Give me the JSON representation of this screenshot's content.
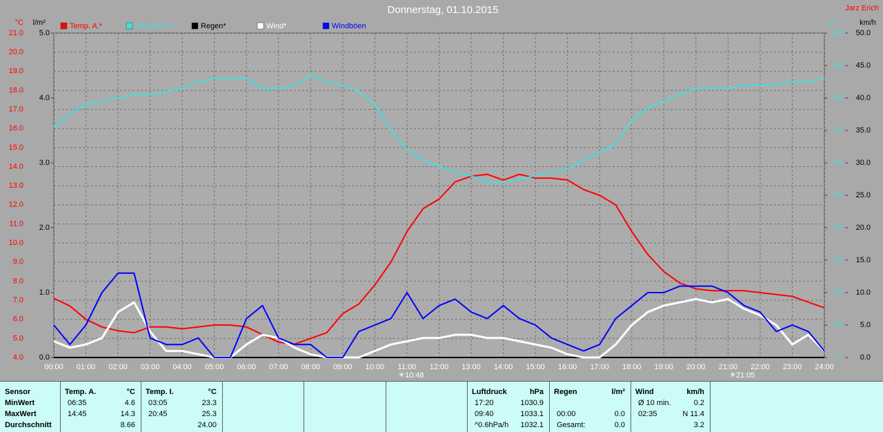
{
  "chart_data": {
    "type": "line",
    "title": "Donnerstag, 01.10.2015",
    "author": "Jarz Erich",
    "y_unit": "°C",
    "y4_unit": "l/m²",
    "y2_unit": "%",
    "y3_unit": "km/h",
    "sun_marks": [
      "10:48",
      "21:05"
    ],
    "xlim": [
      0,
      24
    ],
    "xticks": [
      {
        "value": 0,
        "label": "00:00"
      },
      {
        "value": 1,
        "label": "01:00"
      },
      {
        "value": 2,
        "label": "02:00"
      },
      {
        "value": 3,
        "label": "03:00"
      },
      {
        "value": 4,
        "label": "04:00"
      },
      {
        "value": 5,
        "label": "05:00"
      },
      {
        "value": 6,
        "label": "06:00"
      },
      {
        "value": 7,
        "label": "07:00"
      },
      {
        "value": 8,
        "label": "08:00"
      },
      {
        "value": 9,
        "label": "09:00"
      },
      {
        "value": 10,
        "label": "10:00"
      },
      {
        "value": 11,
        "label": "11:00"
      },
      {
        "value": 12,
        "label": "12:00"
      },
      {
        "value": 13,
        "label": "13:00"
      },
      {
        "value": 14,
        "label": "14:00"
      },
      {
        "value": 15,
        "label": "15:00"
      },
      {
        "value": 16,
        "label": "16:00"
      },
      {
        "value": 17,
        "label": "17:00"
      },
      {
        "value": 18,
        "label": "18:00"
      },
      {
        "value": 19,
        "label": "19:00"
      },
      {
        "value": 20,
        "label": "20:00"
      },
      {
        "value": 21,
        "label": "21:00"
      },
      {
        "value": 22,
        "label": "22:00"
      },
      {
        "value": 23,
        "label": "23:00"
      },
      {
        "value": 24,
        "label": "24:00"
      }
    ],
    "ylim": [
      4,
      21
    ],
    "yticks": [
      {
        "value": 4,
        "label": "4.0"
      },
      {
        "value": 5,
        "label": "5.0"
      },
      {
        "value": 6,
        "label": "6.0"
      },
      {
        "value": 7,
        "label": "7.0"
      },
      {
        "value": 8,
        "label": "8.0"
      },
      {
        "value": 9,
        "label": "9.0"
      },
      {
        "value": 10,
        "label": "10.0"
      },
      {
        "value": 11,
        "label": "11.0"
      },
      {
        "value": 12,
        "label": "12.0"
      },
      {
        "value": 13,
        "label": "13.0"
      },
      {
        "value": 14,
        "label": "14.0"
      },
      {
        "value": 15,
        "label": "15.0"
      },
      {
        "value": 16,
        "label": "16.0"
      },
      {
        "value": 17,
        "label": "17.0"
      },
      {
        "value": 18,
        "label": "18.0"
      },
      {
        "value": 19,
        "label": "19.0"
      },
      {
        "value": 20,
        "label": "20.0"
      },
      {
        "value": 21,
        "label": "21.0"
      }
    ],
    "y4lim": [
      0,
      5
    ],
    "y4ticks": [
      {
        "value": 0,
        "label": "0.0"
      },
      {
        "value": 1,
        "label": "1.0"
      },
      {
        "value": 2,
        "label": "2.0"
      },
      {
        "value": 3,
        "label": "3.0"
      },
      {
        "value": 4,
        "label": "4.0"
      },
      {
        "value": 5,
        "label": "5.0"
      }
    ],
    "y2lim": [
      0,
      100
    ],
    "y2ticks": [
      0,
      10,
      20,
      30,
      40,
      50,
      60,
      70,
      80,
      90,
      100
    ],
    "y3lim": [
      0,
      50
    ],
    "y3ticks": [
      {
        "value": 0,
        "label": "0.0"
      },
      {
        "value": 5,
        "label": "5.0"
      },
      {
        "value": 10,
        "label": "10.0"
      },
      {
        "value": 15,
        "label": "15.0"
      },
      {
        "value": 20,
        "label": "20.0"
      },
      {
        "value": 25,
        "label": "25.0"
      },
      {
        "value": 30,
        "label": "30.0"
      },
      {
        "value": 35,
        "label": "35.0"
      },
      {
        "value": 40,
        "label": "40.0"
      },
      {
        "value": 45,
        "label": "45.0"
      },
      {
        "value": 50,
        "label": "50.0"
      }
    ],
    "grid": true,
    "x": [
      0,
      0.5,
      1,
      1.5,
      2,
      2.5,
      3,
      3.5,
      4,
      4.5,
      5,
      5.5,
      6,
      6.5,
      7,
      7.5,
      8,
      8.5,
      9,
      9.5,
      10,
      10.5,
      11,
      11.5,
      12,
      12.5,
      13,
      13.5,
      14,
      14.5,
      15,
      15.5,
      16,
      16.5,
      17,
      17.5,
      18,
      18.5,
      19,
      19.5,
      20,
      20.5,
      21,
      21.5,
      22,
      22.5,
      23,
      23.5,
      24
    ],
    "series": [
      {
        "name": "Temp. A.*",
        "color": "#ff0000",
        "axis": "y",
        "values": [
          7.1,
          6.7,
          6.0,
          5.6,
          5.4,
          5.3,
          5.6,
          5.6,
          5.5,
          5.6,
          5.7,
          5.7,
          5.6,
          5.2,
          4.8,
          4.7,
          5.0,
          5.3,
          6.3,
          6.8,
          7.8,
          9.0,
          10.6,
          11.8,
          12.3,
          13.2,
          13.5,
          13.6,
          13.3,
          13.6,
          13.4,
          13.4,
          13.3,
          12.8,
          12.5,
          12.0,
          10.6,
          9.4,
          8.5,
          7.9,
          7.6,
          7.5,
          7.5,
          7.5,
          7.4,
          7.3,
          7.2,
          6.9,
          6.6
        ]
      },
      {
        "name": "Feuchte A.*",
        "color": "#40e0e0",
        "axis": "y2",
        "values": [
          71,
          75,
          78,
          79,
          80,
          81,
          81,
          82,
          83,
          85,
          86,
          86,
          86,
          83,
          83,
          84,
          87,
          85,
          84,
          82,
          78,
          70,
          64,
          61,
          59,
          57,
          56,
          54,
          54,
          55,
          56,
          57,
          58,
          61,
          63,
          66,
          73,
          77,
          79,
          81,
          83,
          83,
          83,
          84,
          84,
          84,
          85,
          85,
          86
        ]
      },
      {
        "name": "Regen*",
        "color": "#000000",
        "axis": "y4",
        "values": [
          0,
          0,
          0,
          0,
          0,
          0,
          0,
          0,
          0,
          0,
          0,
          0,
          0,
          0,
          0,
          0,
          0,
          0,
          0,
          0,
          0,
          0,
          0,
          0,
          0,
          0,
          0,
          0,
          0,
          0,
          0,
          0,
          0,
          0,
          0,
          0,
          0,
          0,
          0,
          0,
          0,
          0,
          0,
          0,
          0,
          0,
          0,
          0,
          0
        ]
      },
      {
        "name": "Wind*",
        "color": "#ffffff",
        "axis": "y3",
        "values": [
          2.5,
          1.5,
          2,
          3,
          7,
          8.5,
          4,
          1,
          1,
          0.5,
          0,
          0,
          2,
          3.5,
          3,
          1.5,
          0.5,
          0,
          0,
          0,
          1,
          2,
          2.5,
          3,
          3,
          3.5,
          3.5,
          3,
          3,
          2.5,
          2,
          1.5,
          0.5,
          0,
          0,
          2,
          5,
          7,
          8,
          8.5,
          9,
          8.5,
          9,
          7.5,
          6.5,
          5,
          2,
          3.5,
          1
        ]
      },
      {
        "name": "Windböen",
        "color": "#0000ff",
        "axis": "y3",
        "values": [
          5,
          2,
          5,
          10,
          13,
          13,
          3,
          2,
          2,
          3,
          0,
          0,
          6,
          8,
          3,
          2,
          2,
          0,
          0,
          4,
          5,
          6,
          10,
          6,
          8,
          9,
          7,
          6,
          8,
          6,
          5,
          3,
          2,
          1,
          2,
          6,
          8,
          10,
          10,
          11,
          11,
          11,
          10,
          8,
          7,
          4,
          5,
          4,
          1
        ]
      }
    ]
  },
  "stats": {
    "labels": [
      "Sensor",
      "MinWert",
      "MaxWert",
      "Durchschnitt"
    ],
    "columns": [
      {
        "name": "Temp. A.",
        "unit": "°C",
        "rows": [
          [
            "06:35",
            "4.6"
          ],
          [
            "14:45",
            "14.3"
          ],
          [
            null,
            "8.66"
          ]
        ]
      },
      {
        "name": "Temp. I.",
        "unit": "°C",
        "rows": [
          [
            "03:05",
            "23.3"
          ],
          [
            "20:45",
            "25.3"
          ],
          [
            null,
            "24.00"
          ]
        ]
      },
      {
        "name": "Luftdruck",
        "unit": "hPa",
        "rows": [
          [
            "17:20",
            "1030.9"
          ],
          [
            "09:40",
            "1033.1"
          ],
          [
            "^0.6hPa/h",
            "1032.1"
          ]
        ]
      },
      {
        "name": "Regen",
        "unit": "l/m²",
        "rows": [
          [
            null,
            null
          ],
          [
            "00:00",
            "0.0"
          ],
          [
            "Gesamt:",
            "0.0"
          ]
        ]
      },
      {
        "name": "Wind",
        "unit": "km/h",
        "rows": [
          [
            "Ø 10 min.",
            "0.2"
          ],
          [
            "02:35",
            "N 11.4"
          ],
          [
            null,
            "3.2"
          ]
        ]
      }
    ]
  }
}
